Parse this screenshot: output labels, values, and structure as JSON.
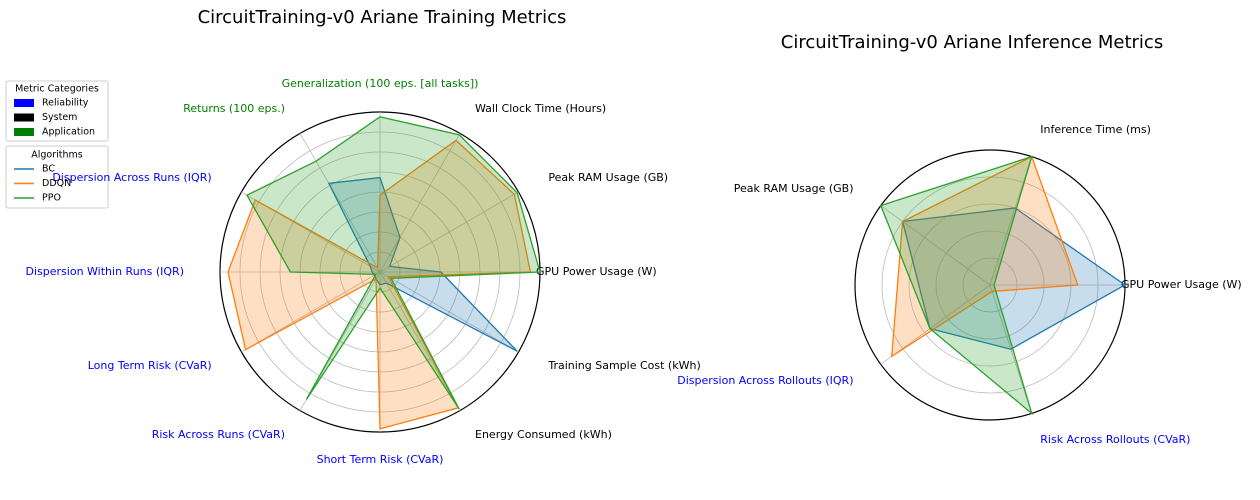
{
  "chart_data": [
    {
      "type": "radar",
      "title": "CircuitTraining-v0 Ariane Training Metrics",
      "categories": [
        "GPU Power Usage (W)",
        "Peak RAM Usage (GB)",
        "Wall Clock Time (Hours)",
        "Generalization (100 eps. [all tasks])",
        "Returns (100 eps.)",
        "Dispersion Across Runs (IQR)",
        "Dispersion Within Runs (IQR)",
        "Long Term Risk (CVaR)",
        "Risk Across Runs (CVaR)",
        "Short Term Risk (CVaR)",
        "Energy Consumed (kWh)",
        "Training Sample Cost (kWh)"
      ],
      "label_colors": [
        "#000000",
        "#000000",
        "#000000",
        "#008000",
        "#008000",
        "#0000ff",
        "#0000ff",
        "#0000ff",
        "#0000ff",
        "#0000ff",
        "#000000",
        "#000000"
      ],
      "series": [
        {
          "name": "BC",
          "color": "#1f77b4",
          "values": [
            0.38,
            0.07,
            0.25,
            0.59,
            0.64,
            0.07,
            0.05,
            0.04,
            0.05,
            0.08,
            0.08,
            0.99
          ]
        },
        {
          "name": "DDQN",
          "color": "#ff7f0e",
          "values": [
            0.94,
            0.97,
            0.95,
            0.48,
            0.03,
            0.9,
            0.95,
            0.97,
            0.05,
            0.98,
            0.98,
            0.06
          ]
        },
        {
          "name": "PPO",
          "color": "#2ca02c",
          "values": [
            1.0,
            0.99,
            0.99,
            0.97,
            0.8,
            0.96,
            0.56,
            0.03,
            0.92,
            0.1,
            0.99,
            0.08
          ]
        }
      ],
      "ylim": [
        0,
        1
      ],
      "yticks": [
        0.125,
        0.25,
        0.375,
        0.5,
        0.625,
        0.75,
        0.875,
        1.0
      ],
      "grid": true,
      "legend": {
        "metric_title": "Metric Categories",
        "metric_categories": [
          {
            "name": "Reliability",
            "color": "#0000ff"
          },
          {
            "name": "System",
            "color": "#000000"
          },
          {
            "name": "Application",
            "color": "#008000"
          }
        ],
        "algorithms_title": "Algorithms",
        "position": "upper left"
      }
    },
    {
      "type": "radar",
      "title": "CircuitTraining-v0 Ariane Inference Metrics",
      "categories": [
        "GPU Power Usage (W)",
        "Inference Time (ms)",
        "Peak RAM Usage (GB)",
        "Dispersion Across Rollouts (IQR)",
        "Risk Across Rollouts (CVaR)"
      ],
      "label_colors": [
        "#000000",
        "#000000",
        "#000000",
        "#0000ff",
        "#0000ff"
      ],
      "series": [
        {
          "name": "BC",
          "color": "#1f77b4",
          "values": [
            1.0,
            0.6,
            0.8,
            0.55,
            0.5
          ]
        },
        {
          "name": "DDQN",
          "color": "#ff7f0e",
          "values": [
            0.65,
            1.0,
            0.8,
            0.9,
            0.05
          ]
        },
        {
          "name": "PPO",
          "color": "#2ca02c",
          "values": [
            0.03,
            1.0,
            1.0,
            0.55,
            1.0
          ]
        }
      ],
      "ylim": [
        0,
        1
      ],
      "yticks": [
        0.2,
        0.4,
        0.6,
        0.8,
        1.0
      ],
      "grid": true
    }
  ]
}
